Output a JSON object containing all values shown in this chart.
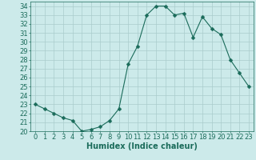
{
  "x": [
    0,
    1,
    2,
    3,
    4,
    5,
    6,
    7,
    8,
    9,
    10,
    11,
    12,
    13,
    14,
    15,
    16,
    17,
    18,
    19,
    20,
    21,
    22,
    23
  ],
  "y": [
    23.0,
    22.5,
    22.0,
    21.5,
    21.2,
    20.0,
    20.2,
    20.5,
    21.2,
    22.5,
    27.5,
    29.5,
    33.0,
    34.0,
    34.0,
    33.0,
    33.2,
    30.5,
    32.8,
    31.5,
    30.8,
    28.0,
    26.5,
    25.0
  ],
  "line_color": "#1a6b5a",
  "marker": "D",
  "marker_size": 2.5,
  "bg_color": "#cceaea",
  "grid_color": "#aacccc",
  "xlabel": "Humidex (Indice chaleur)",
  "xlim": [
    -0.5,
    23.5
  ],
  "ylim": [
    20,
    34.5
  ],
  "yticks": [
    20,
    21,
    22,
    23,
    24,
    25,
    26,
    27,
    28,
    29,
    30,
    31,
    32,
    33,
    34
  ],
  "xtick_labels": [
    "0",
    "1",
    "2",
    "3",
    "4",
    "5",
    "6",
    "7",
    "8",
    "9",
    "10",
    "11",
    "12",
    "13",
    "14",
    "15",
    "16",
    "17",
    "18",
    "19",
    "20",
    "21",
    "22",
    "23"
  ],
  "label_fontsize": 7,
  "tick_fontsize": 6
}
